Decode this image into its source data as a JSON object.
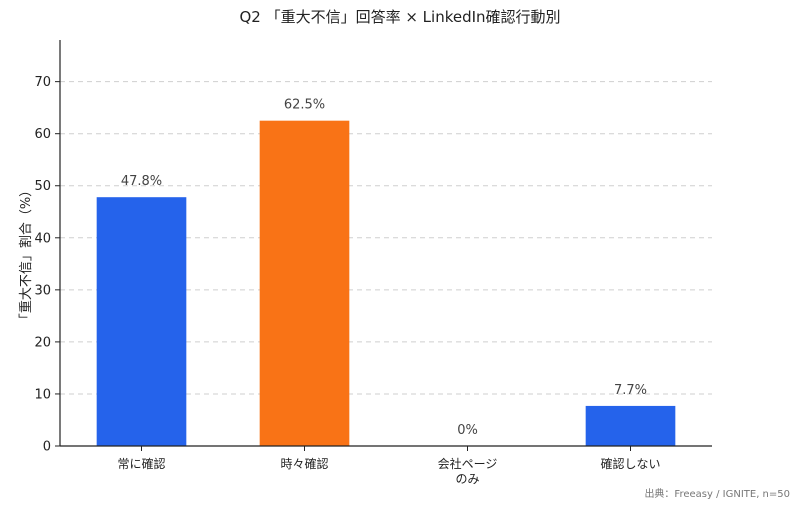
{
  "chart_data": {
    "type": "bar",
    "title": "Q2 「重大不信」回答率 × LinkedIn確認行動別",
    "xlabel": "",
    "ylabel": "「重大不信」割合（%）",
    "categories": [
      "常に確認",
      "時々確認",
      "会社ページ\nのみ",
      "確認しない"
    ],
    "values": [
      47.8,
      62.5,
      0,
      7.7
    ],
    "data_labels": [
      "47.8%",
      "62.5%",
      "0%",
      "7.7%"
    ],
    "colors": [
      "#2563EB",
      "#F97316",
      "#2563EB",
      "#2563EB"
    ],
    "ylim": [
      0,
      78
    ],
    "yticks": [
      0,
      10,
      20,
      30,
      40,
      50,
      60,
      70
    ],
    "grid": true,
    "legend": "none"
  },
  "source_note": "出典：Freeasy / IGNITE, n=50"
}
